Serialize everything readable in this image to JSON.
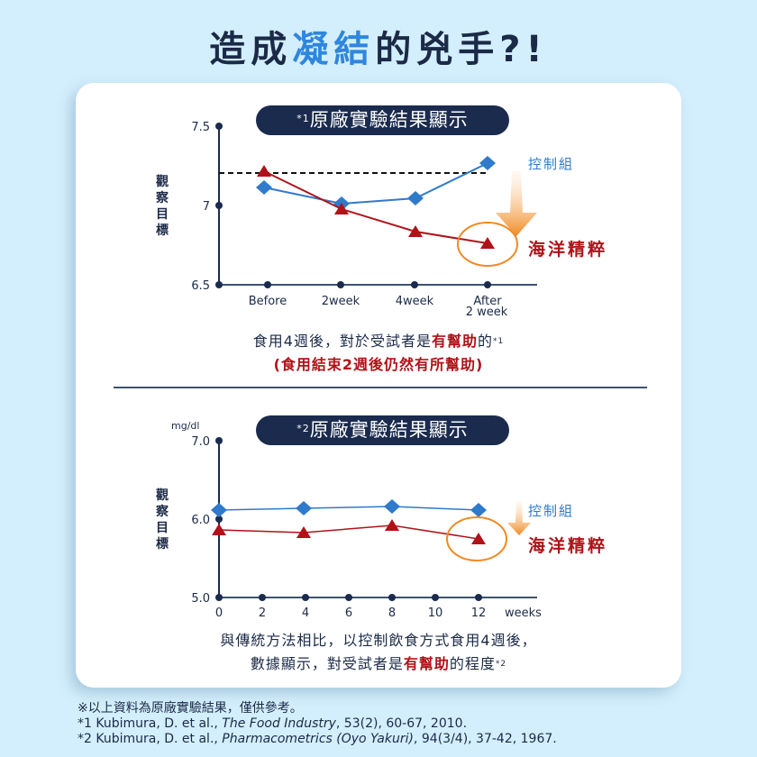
{
  "header": {
    "title_part1": "造成",
    "title_highlight": "凝結",
    "title_part2": "的兇手?!"
  },
  "colors": {
    "background": "#d3eefc",
    "navy": "#1a2b4e",
    "control_blue": "#2f7acb",
    "marine_red": "#b01218",
    "highlight_orange": "#f08a24",
    "title_accent": "#2f86dd"
  },
  "chart1": {
    "badge_sup": "*1",
    "badge_label": "原廠實驗結果顯示",
    "ylabel": "觀察目標",
    "yticks": [
      "7.5",
      "7",
      "6.5"
    ],
    "xticks": [
      "Before",
      "2week",
      "4week",
      "After",
      "2 week"
    ],
    "legend_control": "控制組",
    "legend_marine": "海洋精粹",
    "caption_line1_a": "食用4週後，對於受試者是",
    "caption_line1_red": "有幫助",
    "caption_line1_b": "的",
    "caption_line1_sup": "*1",
    "caption_line2": "(食用結束2週後仍然有所幫助)"
  },
  "chart2": {
    "badge_sup": "*2",
    "badge_label": "原廠實驗結果顯示",
    "unit": "mg/dl",
    "ylabel": "觀察目標",
    "yticks": [
      "7.0",
      "6.0",
      "5.0"
    ],
    "xticks": [
      "0",
      "2",
      "4",
      "6",
      "8",
      "10",
      "12"
    ],
    "xunit": "weeks",
    "legend_control": "控制組",
    "legend_marine": "海洋精粹",
    "caption_line1": "與傳統方法相比，以控制飲食方式食用4週後，",
    "caption_line2_a": "數據顯示，對受試者是",
    "caption_line2_red": "有幫助",
    "caption_line2_b": "的程度",
    "caption_line2_sup": "*2"
  },
  "footnotes": {
    "note": "※以上資料為原廠實驗結果，僅供參考。",
    "ref1_a": "*1 Kubimura, D. et al., ",
    "ref1_journal": "The Food Industry",
    "ref1_b": ", 53(2), 60-67, 2010.",
    "ref2_a": "*2 Kubimura, D. et al., ",
    "ref2_journal": "Pharmacometrics (Oyo Yakuri)",
    "ref2_b": ", 94(3/4), 37-42, 1967."
  },
  "chart_data": [
    {
      "type": "line",
      "title": "*1原廠實驗結果顯示",
      "xlabel": "",
      "ylabel": "觀察目標",
      "categories": [
        "Before",
        "2week",
        "4week",
        "After 2 week"
      ],
      "ylim": [
        6.5,
        7.5
      ],
      "yticks": [
        6.5,
        7,
        7.5
      ],
      "grid": false,
      "reference_line": {
        "y": 7.2,
        "style": "dashed"
      },
      "series": [
        {
          "name": "控制組",
          "color": "#2f7acb",
          "marker": "diamond",
          "values": [
            7.11,
            7.01,
            7.04,
            7.27
          ]
        },
        {
          "name": "海洋精粹",
          "color": "#b01218",
          "marker": "triangle",
          "values": [
            7.21,
            6.97,
            6.83,
            6.76
          ]
        }
      ],
      "annotations": [
        "orange circle around 海洋精粹 After 2 week point",
        "orange down arrow"
      ]
    },
    {
      "type": "line",
      "title": "*2原廠實驗結果顯示",
      "xlabel": "weeks",
      "ylabel": "觀察目標 (mg/dl)",
      "x": [
        0,
        4,
        8,
        12
      ],
      "xticks": [
        0,
        2,
        4,
        6,
        8,
        10,
        12
      ],
      "ylim": [
        5.0,
        7.0
      ],
      "yticks": [
        5.0,
        6.0,
        7.0
      ],
      "grid": false,
      "series": [
        {
          "name": "控制組",
          "color": "#2f7acb",
          "marker": "diamond",
          "values": [
            6.11,
            6.14,
            6.16,
            6.11
          ]
        },
        {
          "name": "海洋精粹",
          "color": "#b01218",
          "marker": "triangle",
          "values": [
            5.86,
            5.83,
            5.92,
            5.74
          ]
        }
      ],
      "annotations": [
        "orange circle around 海洋精粹 week 12 point",
        "orange down arrow"
      ]
    }
  ]
}
